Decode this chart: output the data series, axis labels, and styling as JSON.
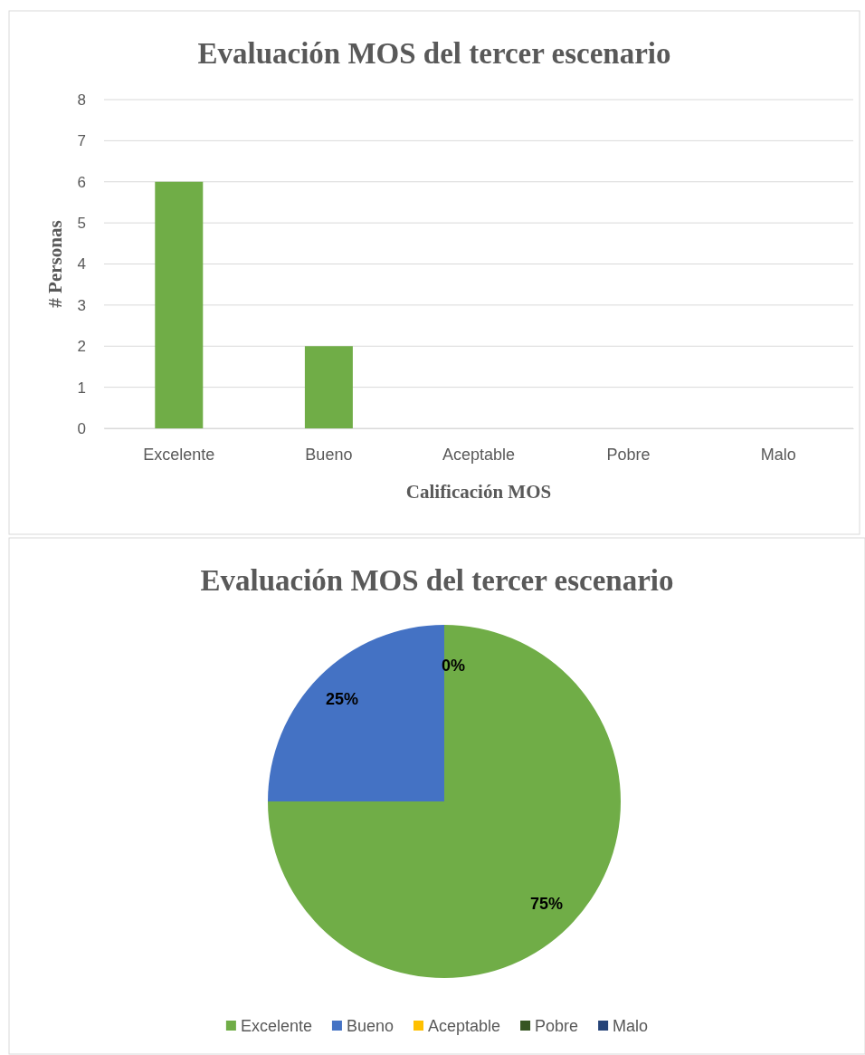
{
  "chart_data": [
    {
      "type": "bar",
      "title": "Evaluación  MOS del tercer escenario",
      "xlabel": "Calificación MOS",
      "ylabel": "# Personas",
      "categories": [
        "Excelente",
        "Bueno",
        "Aceptable",
        "Pobre",
        "Malo"
      ],
      "values": [
        6,
        2,
        0,
        0,
        0
      ],
      "color": "#70ad47",
      "ylim": [
        0,
        8
      ],
      "yticks": [
        0,
        1,
        2,
        3,
        4,
        5,
        6,
        7,
        8
      ],
      "grid": "y"
    },
    {
      "type": "pie",
      "title": "Evaluación  MOS del tercer escenario",
      "categories": [
        "Excelente",
        "Bueno",
        "Aceptable",
        "Pobre",
        "Malo"
      ],
      "values": [
        75,
        25,
        0,
        0,
        0
      ],
      "colors": [
        "#70ad47",
        "#4472c4",
        "#ffc000",
        "#375623",
        "#264478"
      ],
      "value_labels": [
        "75%",
        "25%",
        "0%",
        null,
        null
      ],
      "legend": "bottom"
    }
  ]
}
